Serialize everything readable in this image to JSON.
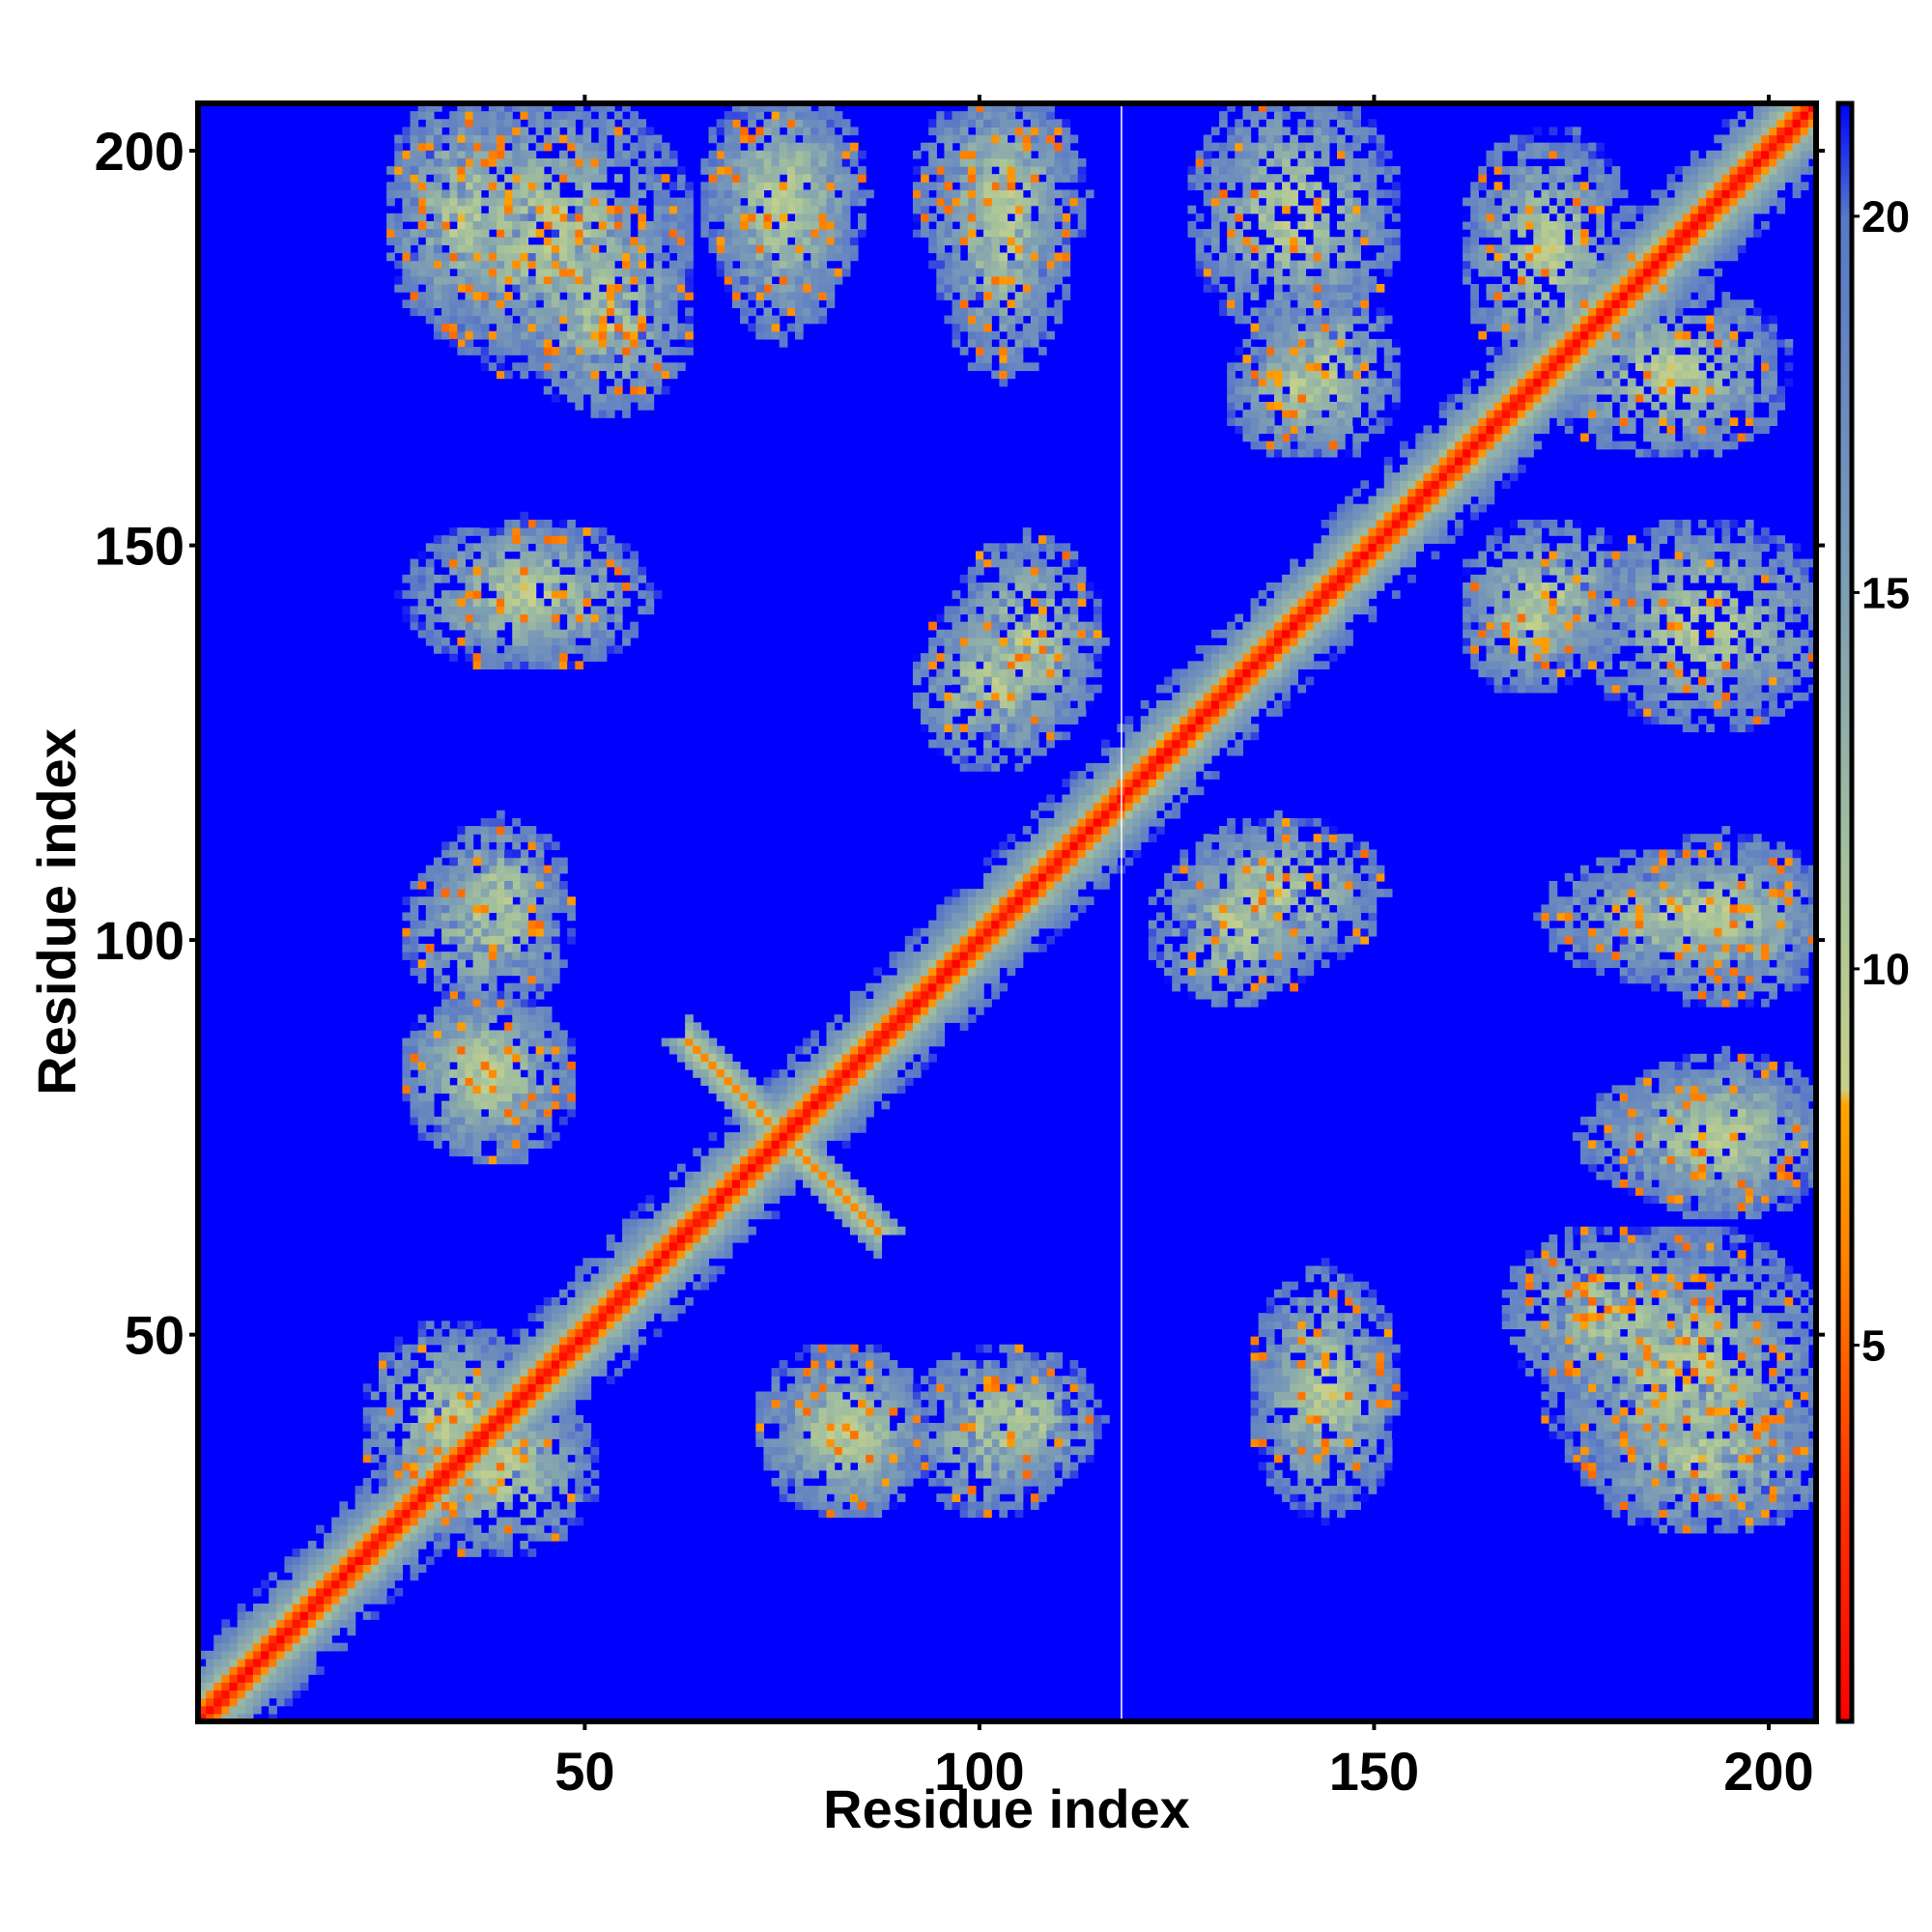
{
  "chart_data": {
    "type": "heatmap",
    "title": "",
    "xlabel": "Residue index",
    "ylabel": "Residue index",
    "xlim": [
      1,
      206
    ],
    "ylim": [
      1,
      206
    ],
    "x_ticks": [
      50,
      100,
      150,
      200
    ],
    "y_ticks": [
      50,
      100,
      150,
      200
    ],
    "colorbar": {
      "ticks": [
        5,
        10,
        15,
        20
      ],
      "range": [
        0,
        21.5
      ],
      "stops": [
        {
          "value": 0,
          "color": "#ff0000"
        },
        {
          "value": 3,
          "color": "#ff3300"
        },
        {
          "value": 6,
          "color": "#ff7f00"
        },
        {
          "value": 8.2,
          "color": "#ffa500"
        },
        {
          "value": 8.4,
          "color": "#c8d08a"
        },
        {
          "value": 11,
          "color": "#a8c49a"
        },
        {
          "value": 15,
          "color": "#7e9eb4"
        },
        {
          "value": 20,
          "color": "#5877c8"
        },
        {
          "value": 21.5,
          "color": "#0000ff"
        }
      ],
      "background_color": "#0000ff"
    },
    "gap_residue": 118,
    "features": [
      {
        "kind": "diagonal",
        "note": "self-contacts along i=j"
      },
      {
        "kind": "antiparallel-block",
        "center": [
          75,
          75
        ],
        "half_length": 12
      },
      {
        "kind": "contact-region",
        "x": [
          30,
          48
        ],
        "y": [
          25,
          40
        ]
      },
      {
        "kind": "contact-region",
        "x": [
          78,
          90
        ],
        "y": [
          30,
          44
        ]
      },
      {
        "kind": "contact-region",
        "x": [
          100,
          112
        ],
        "y": [
          34,
          44
        ]
      },
      {
        "kind": "contact-region",
        "x": [
          138,
          150
        ],
        "y": [
          38,
          46
        ]
      },
      {
        "kind": "contact-region",
        "x": [
          180,
          205
        ],
        "y": [
          28,
          40
        ]
      },
      {
        "kind": "contact-region",
        "x": [
          170,
          190
        ],
        "y": [
          45,
          60
        ]
      },
      {
        "kind": "contact-region",
        "x": [
          180,
          205
        ],
        "y": [
          70,
          80
        ]
      },
      {
        "kind": "contact-region",
        "x": [
          30,
          45
        ],
        "y": [
          75,
          90
        ]
      },
      {
        "kind": "contact-region",
        "x": [
          125,
          140
        ],
        "y": [
          95,
          108
        ]
      },
      {
        "kind": "contact-region",
        "x": [
          175,
          205
        ],
        "y": [
          98,
          108
        ]
      },
      {
        "kind": "contact-region",
        "x": [
          30,
          45
        ],
        "y": [
          95,
          108
        ]
      },
      {
        "kind": "contact-region",
        "x": [
          100,
          112
        ],
        "y": [
          128,
          148
        ]
      },
      {
        "kind": "contact-region",
        "x": [
          165,
          180
        ],
        "y": [
          138,
          150
        ]
      },
      {
        "kind": "contact-region",
        "x": [
          30,
          55
        ],
        "y": [
          138,
          150
        ]
      },
      {
        "kind": "contact-region",
        "x": [
          135,
          145
        ],
        "y": [
          165,
          175
        ]
      },
      {
        "kind": "contact-region",
        "x": [
          30,
          60
        ],
        "y": [
          175,
          205
        ]
      },
      {
        "kind": "contact-region",
        "x": [
          68,
          82
        ],
        "y": [
          185,
          205
        ]
      },
      {
        "kind": "contact-region",
        "x": [
          95,
          110
        ],
        "y": [
          185,
          205
        ]
      },
      {
        "kind": "contact-region",
        "x": [
          130,
          150
        ],
        "y": [
          180,
          205
        ]
      },
      {
        "kind": "contact-region",
        "x": [
          165,
          180
        ],
        "y": [
          175,
          200
        ]
      }
    ]
  }
}
